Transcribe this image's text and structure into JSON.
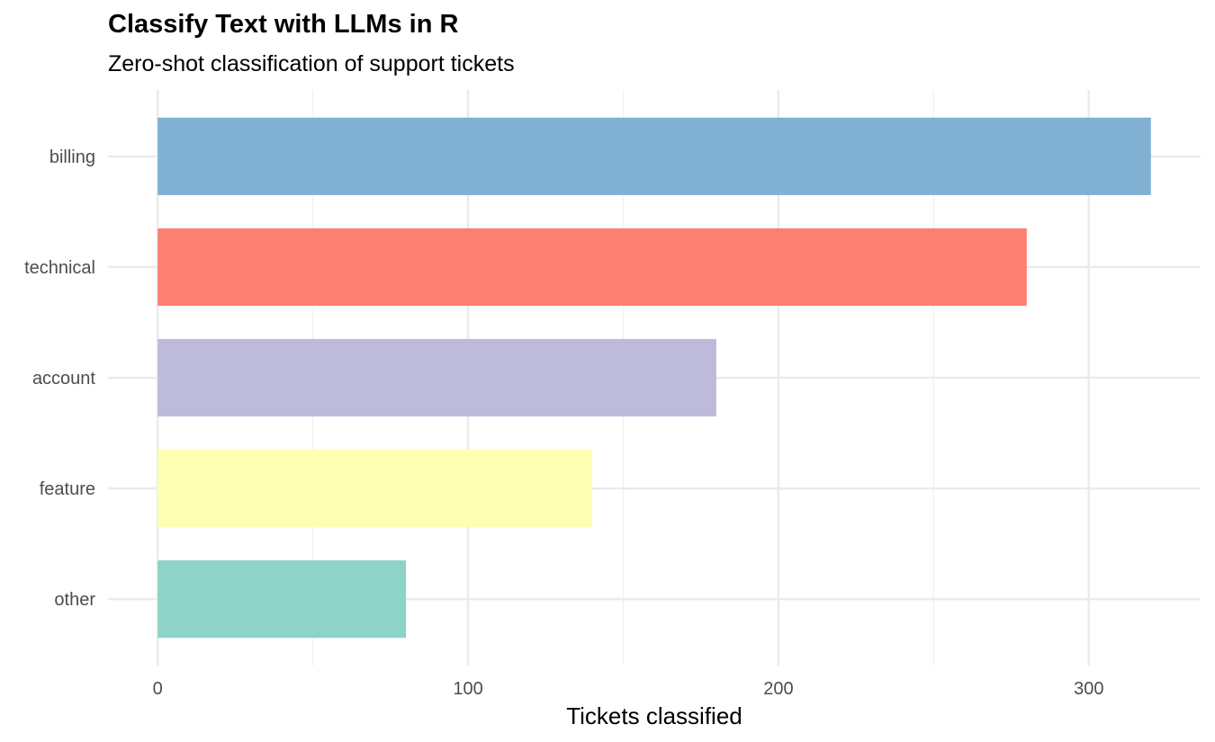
{
  "chart_data": {
    "type": "bar",
    "orientation": "horizontal",
    "title": "Classify Text with LLMs in R",
    "subtitle": "Zero-shot classification of support tickets",
    "xlabel": "Tickets classified",
    "ylabel": "",
    "categories": [
      "billing",
      "technical",
      "account",
      "feature",
      "other"
    ],
    "values": [
      320,
      280,
      180,
      140,
      80
    ],
    "colors": [
      "#80B1D3",
      "#FB8072",
      "#BEBADA",
      "#FFFFB3",
      "#8DD3C7"
    ],
    "xlim": [
      -16,
      336
    ],
    "xticks": [
      0,
      100,
      200,
      300
    ],
    "xtick_labels": [
      "0",
      "100",
      "200",
      "300"
    ],
    "grid": true,
    "legend": "none"
  }
}
